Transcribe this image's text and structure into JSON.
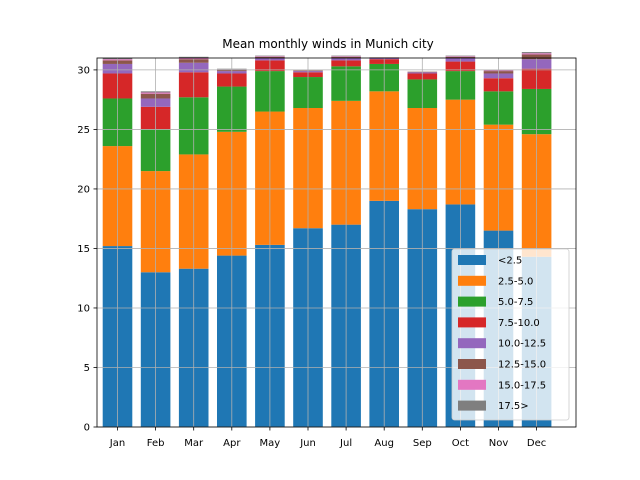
{
  "chart_data": {
    "type": "bar",
    "stacked": true,
    "title": "Mean monthly winds in Munich city",
    "xlabel": "",
    "ylabel": "",
    "categories": [
      "Jan",
      "Feb",
      "Mar",
      "Apr",
      "May",
      "Jun",
      "Jul",
      "Aug",
      "Sep",
      "Oct",
      "Nov",
      "Dec"
    ],
    "ylim": [
      0,
      31
    ],
    "yticks": [
      0,
      5,
      10,
      15,
      20,
      25,
      30
    ],
    "grid": true,
    "legend_position": "lower-right",
    "series": [
      {
        "name": "<2.5",
        "color": "#1f77b4",
        "values": [
          15.2,
          13.0,
          13.3,
          14.4,
          15.3,
          16.7,
          17.0,
          19.0,
          18.3,
          18.7,
          16.5,
          14.3
        ]
      },
      {
        "name": "2.5-5.0",
        "color": "#ff7f0e",
        "values": [
          8.4,
          8.5,
          9.6,
          10.4,
          11.2,
          10.1,
          10.4,
          9.2,
          8.5,
          8.8,
          8.9,
          10.3
        ]
      },
      {
        "name": "5.0-7.5",
        "color": "#2ca02c",
        "values": [
          4.0,
          3.5,
          4.8,
          3.8,
          3.4,
          2.6,
          2.9,
          2.3,
          2.4,
          2.4,
          2.8,
          3.8
        ]
      },
      {
        "name": "7.5-10.0",
        "color": "#d62728",
        "values": [
          2.1,
          1.9,
          2.1,
          1.1,
          0.9,
          0.4,
          0.5,
          0.4,
          0.5,
          0.8,
          1.1,
          1.7
        ]
      },
      {
        "name": "10.0-12.5",
        "color": "#9467bd",
        "values": [
          0.8,
          0.7,
          0.8,
          0.2,
          0.2,
          0.1,
          0.2,
          0.1,
          0.1,
          0.3,
          0.4,
          0.8
        ]
      },
      {
        "name": "12.5-15.0",
        "color": "#8c564b",
        "values": [
          0.3,
          0.4,
          0.3,
          0.1,
          0.1,
          0.05,
          0.1,
          0.05,
          0.05,
          0.1,
          0.2,
          0.4
        ]
      },
      {
        "name": "15.0-17.5",
        "color": "#e377c2",
        "values": [
          0.1,
          0.1,
          0.1,
          0.05,
          0.05,
          0.0,
          0.05,
          0.0,
          0.0,
          0.05,
          0.05,
          0.1
        ]
      },
      {
        "name": "17.5>",
        "color": "#7f7f7f",
        "values": [
          0.1,
          0.1,
          0.1,
          0.05,
          0.05,
          0.0,
          0.05,
          0.0,
          0.0,
          0.05,
          0.05,
          0.1
        ]
      }
    ]
  }
}
